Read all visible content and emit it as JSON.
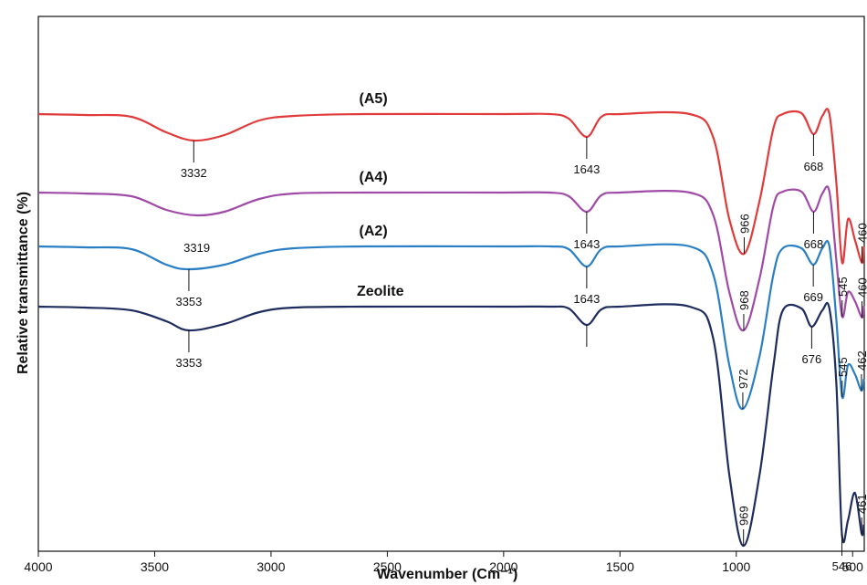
{
  "chart_data": {
    "type": "line",
    "title": "",
    "xlabel": "Wavenumber (Cm⁻¹)",
    "ylabel": "Relative transmittance (%)",
    "xlim": [
      4000,
      450
    ],
    "x_reversed": true,
    "xticks": [
      "4000",
      "3500",
      "3000",
      "2500",
      "2000",
      "1500",
      "1000",
      "500"
    ],
    "grid": false,
    "series": [
      {
        "name": "(A5)",
        "color": "#e03a3a",
        "points": [
          [
            4000,
            125
          ],
          [
            3800,
            126
          ],
          [
            3600,
            128
          ],
          [
            3450,
            145
          ],
          [
            3332,
            154
          ],
          [
            3200,
            148
          ],
          [
            3050,
            132
          ],
          [
            2900,
            127
          ],
          [
            2600,
            125
          ],
          [
            2000,
            125
          ],
          [
            1800,
            125
          ],
          [
            1720,
            130
          ],
          [
            1643,
            150
          ],
          [
            1580,
            128
          ],
          [
            1500,
            125
          ],
          [
            1200,
            125
          ],
          [
            1100,
            150
          ],
          [
            1030,
            240
          ],
          [
            966,
            278
          ],
          [
            900,
            220
          ],
          [
            840,
            140
          ],
          [
            800,
            125
          ],
          [
            720,
            124
          ],
          [
            668,
            147
          ],
          [
            630,
            127
          ],
          [
            600,
            125
          ],
          [
            570,
            200
          ],
          [
            545,
            288
          ],
          [
            520,
            240
          ],
          [
            490,
            263
          ],
          [
            460,
            288
          ],
          [
            452,
            270
          ]
        ]
      },
      {
        "name": "(A4)",
        "color": "#a04aa8",
        "points": [
          [
            4000,
            211
          ],
          [
            3800,
            212
          ],
          [
            3600,
            215
          ],
          [
            3450,
            230
          ],
          [
            3319,
            236
          ],
          [
            3200,
            232
          ],
          [
            3050,
            218
          ],
          [
            2900,
            212
          ],
          [
            2600,
            211
          ],
          [
            2000,
            211
          ],
          [
            1800,
            211
          ],
          [
            1720,
            215
          ],
          [
            1643,
            232
          ],
          [
            1580,
            214
          ],
          [
            1500,
            211
          ],
          [
            1200,
            211
          ],
          [
            1100,
            235
          ],
          [
            1030,
            320
          ],
          [
            968,
            362
          ],
          [
            900,
            305
          ],
          [
            840,
            225
          ],
          [
            800,
            210
          ],
          [
            720,
            210
          ],
          [
            668,
            232
          ],
          [
            630,
            212
          ],
          [
            600,
            210
          ],
          [
            570,
            285
          ],
          [
            545,
            347
          ],
          [
            520,
            320
          ],
          [
            490,
            330
          ],
          [
            460,
            348
          ],
          [
            452,
            335
          ]
        ]
      },
      {
        "name": "(A2)",
        "color": "#2a7fc4",
        "points": [
          [
            4000,
            270
          ],
          [
            3800,
            271
          ],
          [
            3600,
            273
          ],
          [
            3450,
            290
          ],
          [
            3353,
            295
          ],
          [
            3200,
            290
          ],
          [
            3050,
            278
          ],
          [
            2900,
            272
          ],
          [
            2600,
            270
          ],
          [
            2000,
            270
          ],
          [
            1800,
            270
          ],
          [
            1720,
            273
          ],
          [
            1643,
            292
          ],
          [
            1580,
            273
          ],
          [
            1500,
            270
          ],
          [
            1200,
            270
          ],
          [
            1100,
            300
          ],
          [
            1030,
            400
          ],
          [
            972,
            448
          ],
          [
            900,
            390
          ],
          [
            840,
            300
          ],
          [
            800,
            272
          ],
          [
            720,
            272
          ],
          [
            669,
            290
          ],
          [
            630,
            272
          ],
          [
            600,
            270
          ],
          [
            570,
            350
          ],
          [
            545,
            435
          ],
          [
            520,
            400
          ],
          [
            490,
            410
          ],
          [
            462,
            428
          ],
          [
            452,
            415
          ]
        ]
      },
      {
        "name": "Zeolite",
        "color": "#1e2c5e",
        "points": [
          [
            4000,
            336
          ],
          [
            3800,
            337
          ],
          [
            3600,
            340
          ],
          [
            3450,
            352
          ],
          [
            3353,
            362
          ],
          [
            3200,
            355
          ],
          [
            3050,
            342
          ],
          [
            2900,
            337
          ],
          [
            2600,
            336
          ],
          [
            2000,
            336
          ],
          [
            1800,
            336
          ],
          [
            1720,
            338
          ],
          [
            1643,
            356
          ],
          [
            1580,
            339
          ],
          [
            1500,
            336
          ],
          [
            1200,
            336
          ],
          [
            1100,
            370
          ],
          [
            1030,
            520
          ],
          [
            969,
            598
          ],
          [
            900,
            520
          ],
          [
            840,
            400
          ],
          [
            800,
            340
          ],
          [
            720,
            338
          ],
          [
            676,
            358
          ],
          [
            630,
            340
          ],
          [
            600,
            338
          ],
          [
            570,
            420
          ],
          [
            546,
            585
          ],
          [
            520,
            570
          ],
          [
            490,
            540
          ],
          [
            461,
            585
          ],
          [
            452,
            575
          ]
        ]
      }
    ],
    "annotations": [
      {
        "text": "3332",
        "x": 3332,
        "series": "(A5)",
        "orient": "below"
      },
      {
        "text": "1643",
        "x": 1643,
        "series": "(A5)",
        "orient": "below"
      },
      {
        "text": "668",
        "x": 668,
        "series": "(A5)",
        "orient": "below"
      },
      {
        "text": "966",
        "x": 966,
        "series": "(A5)",
        "orient": "rotated"
      },
      {
        "text": "460",
        "x": 460,
        "series": "(A5)",
        "orient": "rotated"
      },
      {
        "text": "3319",
        "x": 3319,
        "series": "(A4)",
        "orient": "below-noline"
      },
      {
        "text": "1643",
        "x": 1643,
        "series": "(A4)",
        "orient": "below"
      },
      {
        "text": "668",
        "x": 668,
        "series": "(A4)",
        "orient": "below"
      },
      {
        "text": "968",
        "x": 968,
        "series": "(A4)",
        "orient": "rotated"
      },
      {
        "text": "545",
        "x": 545,
        "series": "(A4)",
        "orient": "rotated"
      },
      {
        "text": "460",
        "x": 460,
        "series": "(A4)",
        "orient": "rotated"
      },
      {
        "text": "3353",
        "x": 3353,
        "series": "(A2)",
        "orient": "below"
      },
      {
        "text": "1643",
        "x": 1643,
        "series": "(A2)",
        "orient": "below"
      },
      {
        "text": "669",
        "x": 669,
        "series": "(A2)",
        "orient": "below"
      },
      {
        "text": "972",
        "x": 972,
        "series": "(A2)",
        "orient": "rotated"
      },
      {
        "text": "545",
        "x": 545,
        "series": "(A2)",
        "orient": "rotated"
      },
      {
        "text": "462",
        "x": 462,
        "series": "(A2)",
        "orient": "rotated"
      },
      {
        "text": "3353",
        "x": 3353,
        "series": "Zeolite",
        "orient": "below"
      },
      {
        "text": "",
        "x": 1643,
        "series": "Zeolite",
        "orient": "below"
      },
      {
        "text": "676",
        "x": 676,
        "series": "Zeolite",
        "orient": "below"
      },
      {
        "text": "969",
        "x": 969,
        "series": "Zeolite",
        "orient": "rotated"
      },
      {
        "text": "546",
        "x": 546,
        "series": "Zeolite",
        "orient": "below"
      },
      {
        "text": "461",
        "x": 461,
        "series": "Zeolite",
        "orient": "rotated"
      }
    ]
  }
}
